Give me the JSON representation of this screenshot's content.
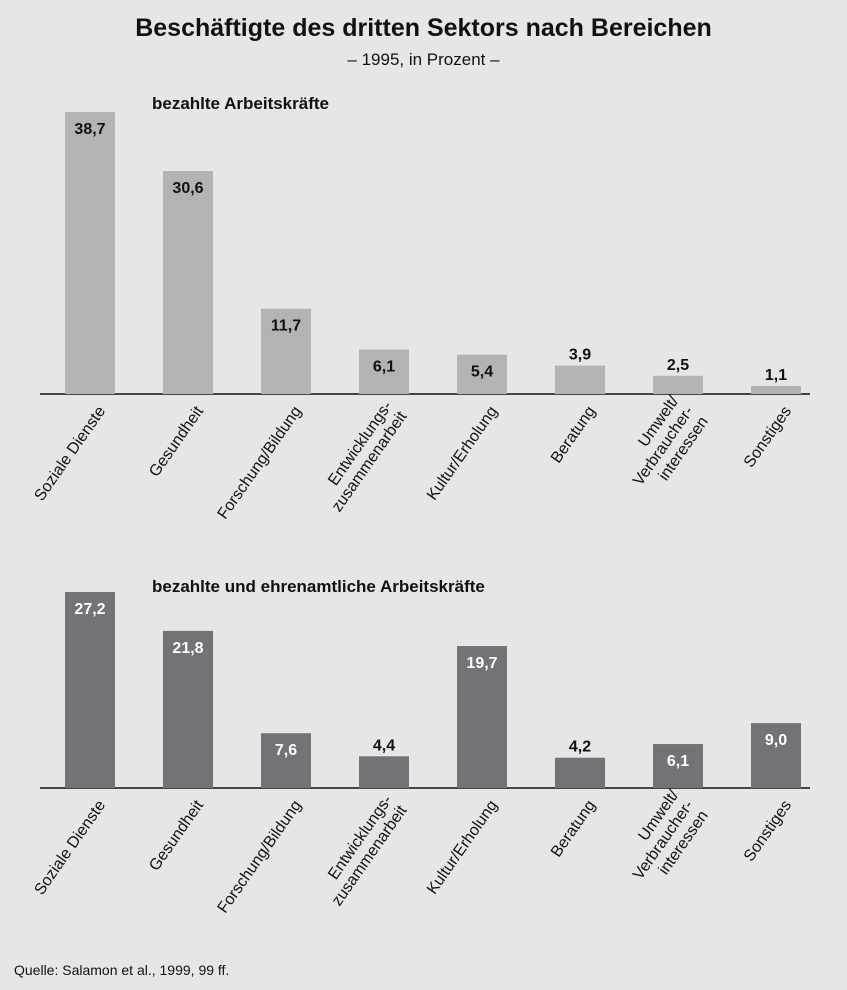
{
  "title": "Beschäftigte des dritten Sektors nach Bereichen",
  "subtitle": "– 1995, in Prozent –",
  "source": "Quelle: Salamon et al., 1999, 99 ff.",
  "colors": {
    "panel1_bar": "#b3b3b3",
    "panel2_bar": "#727277",
    "background": "#e6e6e6"
  },
  "chart_data": [
    {
      "type": "bar",
      "title": "bezahlte Arbeitskräfte",
      "categories": [
        [
          "Soziale Dienste"
        ],
        [
          "Gesundheit"
        ],
        [
          "Forschung/Bildung"
        ],
        [
          "Entwicklungs-",
          "zusammenarbeit"
        ],
        [
          "Kultur/Erholung"
        ],
        [
          "Beratung"
        ],
        [
          "Umwelt/",
          "Verbraucher-",
          "interessen"
        ],
        [
          "Sonstiges"
        ]
      ],
      "values": [
        38.7,
        30.6,
        11.7,
        6.1,
        5.4,
        3.9,
        2.5,
        1.1
      ],
      "value_labels": [
        "38,7",
        "30,6",
        "11,7",
        "6,1",
        "5,4",
        "3,9",
        "2,5",
        "1,1"
      ],
      "ylim": [
        0,
        38.7
      ],
      "grid": false
    },
    {
      "type": "bar",
      "title": "bezahlte und ehrenamtliche Arbeitskräfte",
      "categories": [
        [
          "Soziale Dienste"
        ],
        [
          "Gesundheit"
        ],
        [
          "Forschung/Bildung"
        ],
        [
          "Entwicklungs-",
          "zusammenarbeit"
        ],
        [
          "Kultur/Erholung"
        ],
        [
          "Beratung"
        ],
        [
          "Umwelt/",
          "Verbraucher-",
          "interessen"
        ],
        [
          "Sonstiges"
        ]
      ],
      "values": [
        27.2,
        21.8,
        7.6,
        4.4,
        19.7,
        4.2,
        6.1,
        9.0
      ],
      "value_labels": [
        "27,2",
        "21,8",
        "7,6",
        "4,4",
        "19,7",
        "4,2",
        "6,1",
        "9,0"
      ],
      "ylim": [
        0,
        27.2
      ],
      "grid": false
    }
  ]
}
